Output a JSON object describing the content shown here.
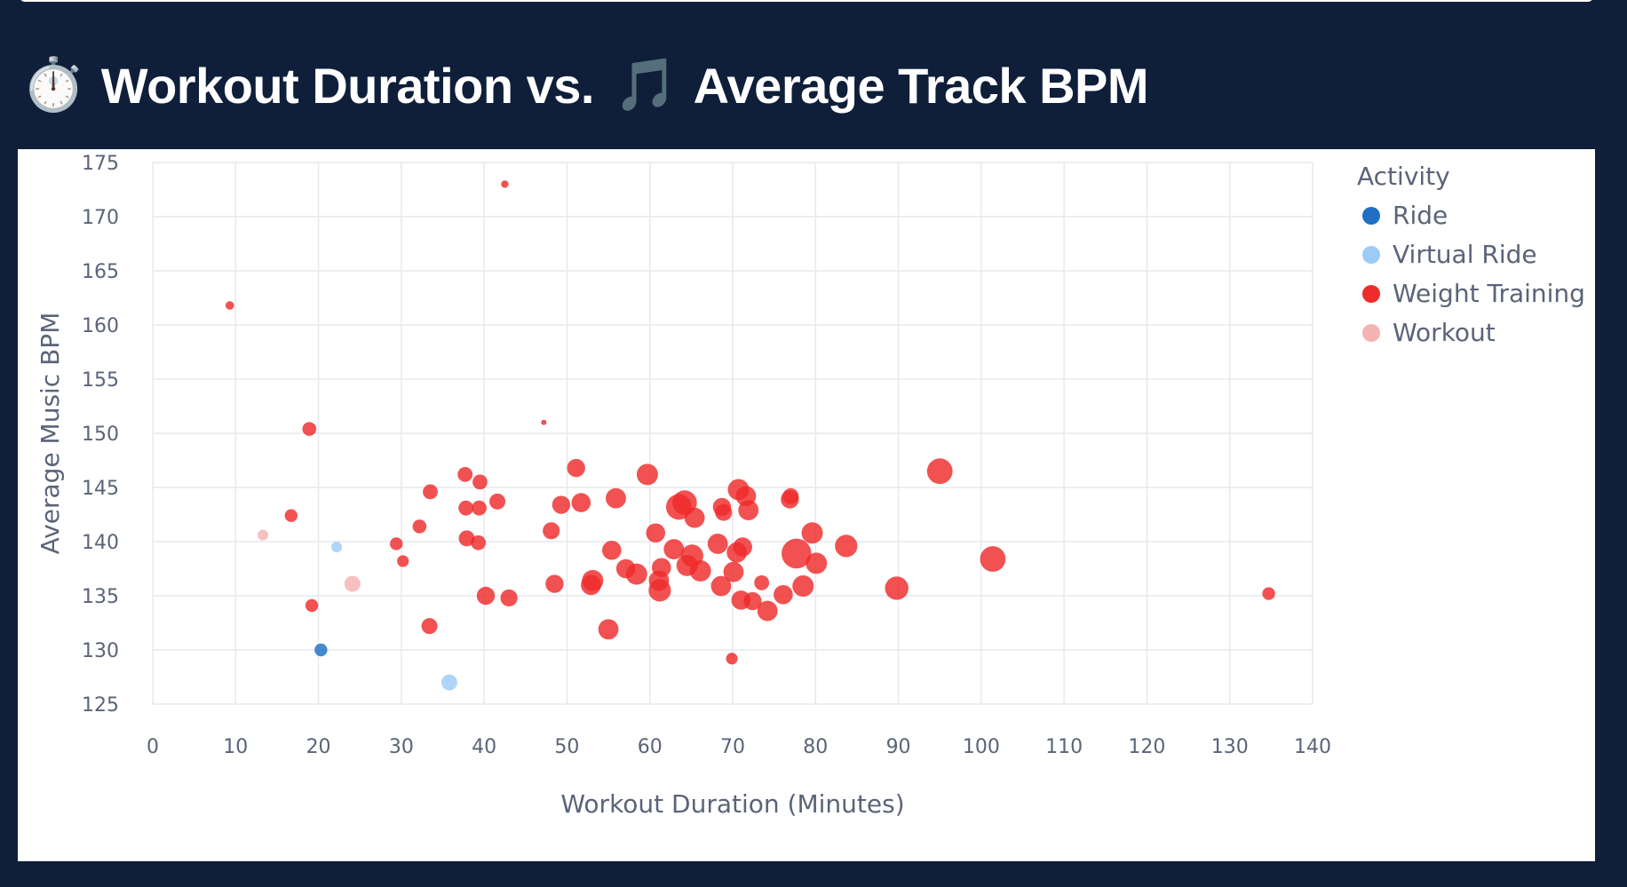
{
  "header": {
    "title_icon": "stopwatch-icon",
    "title_part1": "Workout Duration vs.",
    "title_icon2": "music-note-icon",
    "title_part2": "Average Track BPM"
  },
  "colors": {
    "Ride": "#1f6fc5",
    "Virtual Ride": "#9cccf5",
    "Weight Training": "#ef2b2b",
    "Workout": "#f5b2b2"
  },
  "chart_data": {
    "type": "scatter",
    "title": "",
    "xlabel": "Workout Duration (Minutes)",
    "ylabel": "Average Music BPM",
    "xlim": [
      0,
      140
    ],
    "ylim": [
      125,
      175
    ],
    "x_ticks": [
      0,
      10,
      20,
      30,
      40,
      50,
      60,
      70,
      80,
      90,
      100,
      110,
      120,
      130,
      140
    ],
    "y_ticks": [
      125,
      130,
      135,
      140,
      145,
      150,
      155,
      160,
      165,
      170,
      175
    ],
    "grid": true,
    "legend": {
      "title": "Activity",
      "placement": "right",
      "entries": [
        "Ride",
        "Virtual Ride",
        "Weight Training",
        "Workout"
      ]
    },
    "size_encoding": "relative",
    "series": [
      {
        "name": "Ride",
        "points": [
          [
            20.3,
            130.0,
            1.2
          ]
        ]
      },
      {
        "name": "Virtual Ride",
        "points": [
          [
            22.2,
            139.5,
            1.0
          ],
          [
            35.8,
            127.0,
            1.5
          ]
        ]
      },
      {
        "name": "Workout",
        "points": [
          [
            13.3,
            140.6,
            1.0
          ],
          [
            24.1,
            136.1,
            1.5
          ]
        ]
      },
      {
        "name": "Weight Training",
        "points": [
          [
            9.3,
            161.8,
            0.8
          ],
          [
            42.5,
            173.0,
            0.7
          ],
          [
            47.2,
            151.0,
            0.5
          ],
          [
            18.9,
            150.4,
            1.3
          ],
          [
            16.7,
            142.4,
            1.2
          ],
          [
            19.2,
            134.1,
            1.2
          ],
          [
            29.4,
            139.8,
            1.2
          ],
          [
            30.2,
            138.2,
            1.1
          ],
          [
            32.2,
            141.4,
            1.3
          ],
          [
            33.5,
            144.6,
            1.4
          ],
          [
            33.4,
            132.2,
            1.5
          ],
          [
            37.7,
            146.2,
            1.4
          ],
          [
            37.8,
            143.1,
            1.4
          ],
          [
            37.9,
            140.3,
            1.5
          ],
          [
            39.3,
            139.9,
            1.4
          ],
          [
            39.5,
            145.5,
            1.4
          ],
          [
            39.4,
            143.1,
            1.4
          ],
          [
            40.2,
            135.0,
            1.7
          ],
          [
            41.6,
            143.7,
            1.5
          ],
          [
            43.0,
            134.8,
            1.6
          ],
          [
            48.1,
            141.0,
            1.6
          ],
          [
            48.5,
            136.1,
            1.7
          ],
          [
            49.3,
            143.4,
            1.7
          ],
          [
            51.1,
            146.8,
            1.7
          ],
          [
            51.7,
            143.6,
            1.8
          ],
          [
            52.9,
            136.0,
            1.9
          ],
          [
            53.1,
            136.4,
            2.0
          ],
          [
            55.4,
            139.2,
            1.8
          ],
          [
            55.9,
            144.0,
            1.9
          ],
          [
            55.0,
            131.9,
            1.9
          ],
          [
            57.1,
            137.5,
            1.8
          ],
          [
            58.4,
            137.0,
            2.0
          ],
          [
            59.7,
            146.2,
            2.0
          ],
          [
            60.7,
            140.8,
            1.8
          ],
          [
            61.1,
            136.4,
            1.9
          ],
          [
            61.2,
            135.5,
            2.1
          ],
          [
            61.4,
            137.6,
            1.8
          ],
          [
            62.9,
            139.3,
            1.9
          ],
          [
            63.5,
            143.2,
            2.4
          ],
          [
            64.2,
            143.6,
            2.3
          ],
          [
            64.5,
            137.8,
            2.0
          ],
          [
            65.1,
            138.7,
            2.1
          ],
          [
            65.4,
            142.2,
            1.9
          ],
          [
            66.1,
            137.3,
            2.0
          ],
          [
            68.2,
            139.8,
            1.9
          ],
          [
            68.7,
            143.2,
            1.7
          ],
          [
            68.9,
            142.7,
            1.6
          ],
          [
            68.6,
            135.9,
            1.9
          ],
          [
            70.1,
            137.2,
            1.9
          ],
          [
            70.5,
            139.0,
            1.9
          ],
          [
            70.7,
            144.8,
            2.0
          ],
          [
            71.2,
            139.5,
            1.8
          ],
          [
            71.6,
            144.2,
            1.9
          ],
          [
            71.9,
            142.9,
            1.9
          ],
          [
            71.0,
            134.6,
            1.8
          ],
          [
            72.4,
            134.5,
            1.7
          ],
          [
            73.5,
            136.2,
            1.4
          ],
          [
            74.2,
            133.6,
            1.9
          ],
          [
            76.1,
            135.1,
            1.8
          ],
          [
            76.9,
            143.9,
            1.7
          ],
          [
            77.0,
            144.2,
            1.5
          ],
          [
            77.7,
            138.9,
            2.8
          ],
          [
            78.5,
            135.9,
            2.0
          ],
          [
            79.6,
            140.8,
            2.0
          ],
          [
            80.1,
            138.0,
            2.0
          ],
          [
            83.7,
            139.6,
            2.1
          ],
          [
            69.9,
            129.2,
            1.1
          ],
          [
            89.8,
            135.7,
            2.2
          ],
          [
            95.0,
            146.5,
            2.4
          ],
          [
            101.4,
            138.4,
            2.4
          ],
          [
            134.7,
            135.2,
            1.2
          ]
        ]
      }
    ]
  }
}
